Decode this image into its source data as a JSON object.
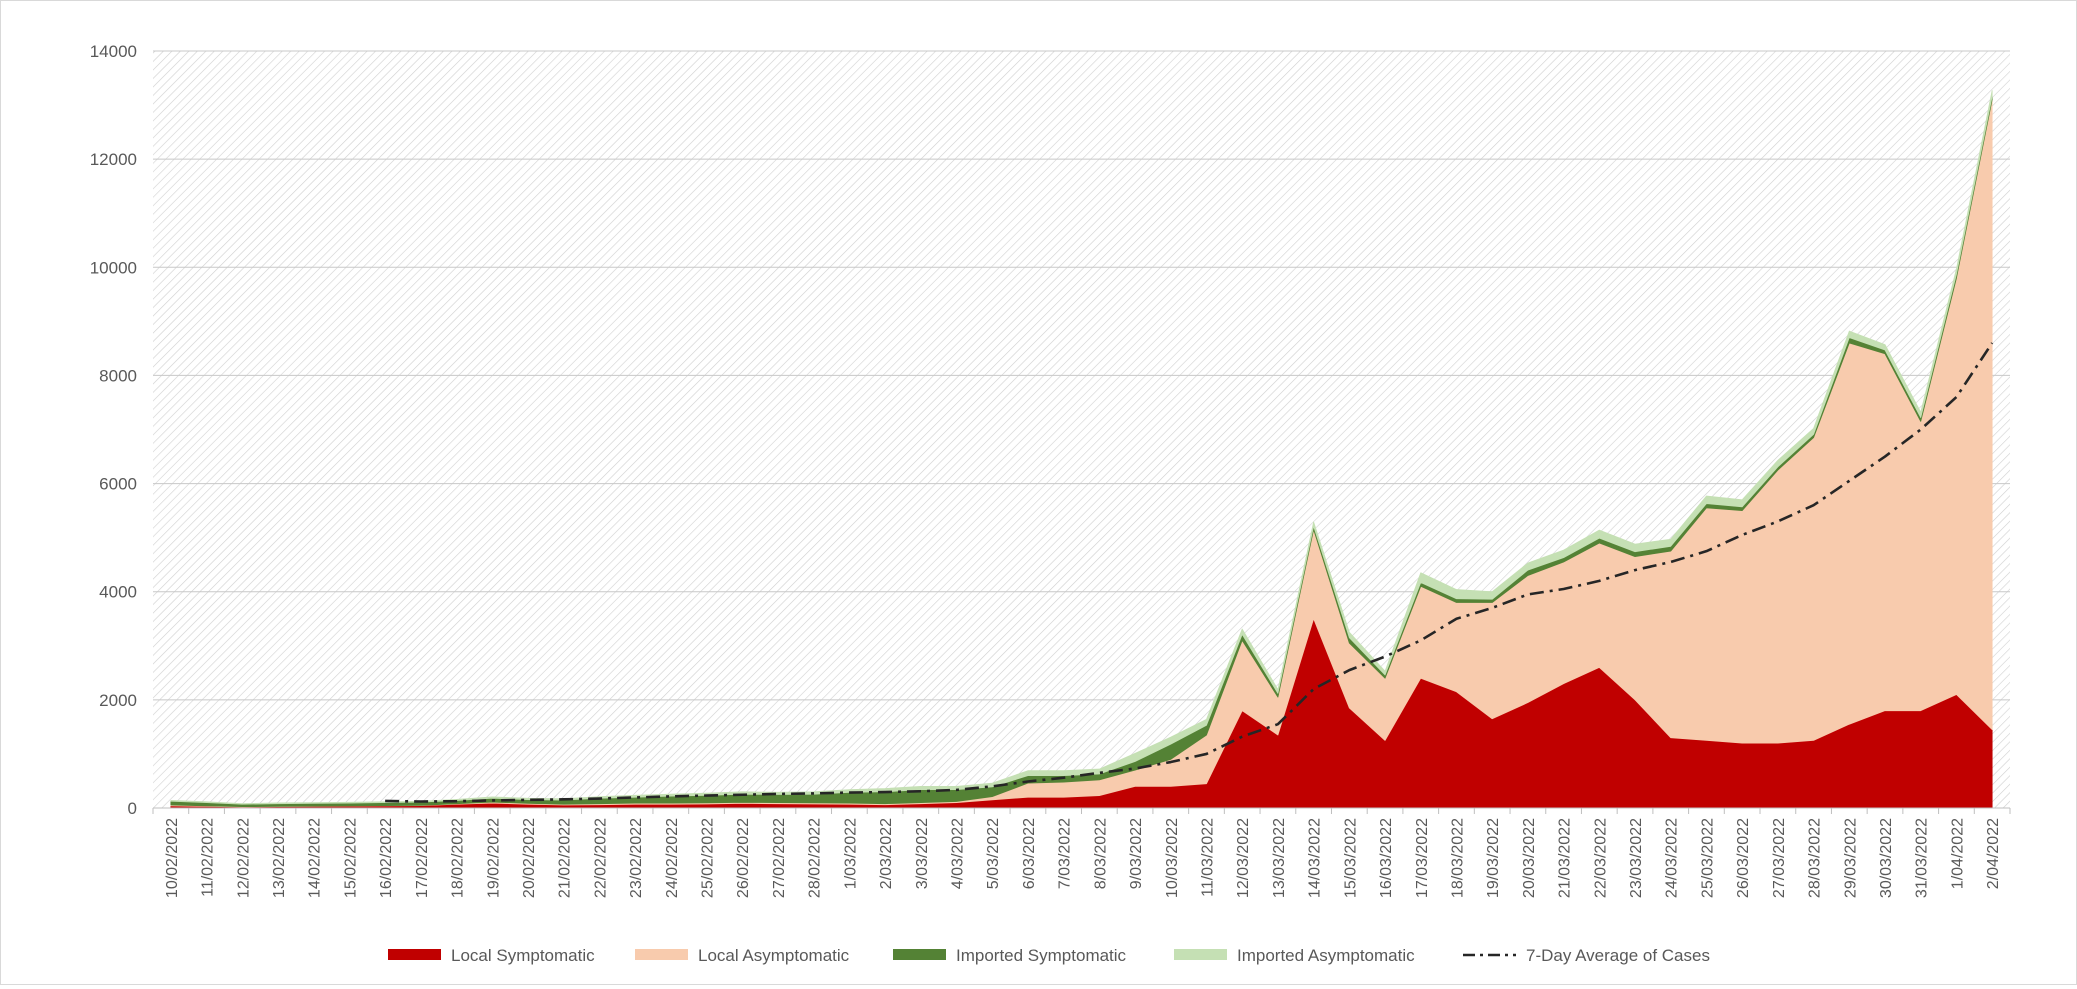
{
  "chart_data": {
    "type": "area",
    "stacked": true,
    "title": "",
    "xlabel": "",
    "ylabel": "",
    "ylim": [
      0,
      14000
    ],
    "y_ticks": [
      0,
      2000,
      4000,
      6000,
      8000,
      10000,
      12000,
      14000
    ],
    "grid": true,
    "legend_position": "bottom",
    "categories": [
      "10/02/2022",
      "11/02/2022",
      "12/02/2022",
      "13/02/2022",
      "14/02/2022",
      "15/02/2022",
      "16/02/2022",
      "17/02/2022",
      "18/02/2022",
      "19/02/2022",
      "20/02/2022",
      "21/02/2022",
      "22/02/2022",
      "23/02/2022",
      "24/02/2022",
      "25/02/2022",
      "26/02/2022",
      "27/02/2022",
      "28/02/2022",
      "1/03/2022",
      "2/03/2022",
      "3/03/2022",
      "4/03/2022",
      "5/03/2022",
      "6/03/2022",
      "7/03/2022",
      "8/03/2022",
      "9/03/2022",
      "10/03/2022",
      "11/03/2022",
      "12/03/2022",
      "13/03/2022",
      "14/03/2022",
      "15/03/2022",
      "16/03/2022",
      "17/03/2022",
      "18/03/2022",
      "19/03/2022",
      "20/03/2022",
      "21/03/2022",
      "22/03/2022",
      "23/03/2022",
      "24/03/2022",
      "25/03/2022",
      "26/03/2022",
      "27/03/2022",
      "28/03/2022",
      "29/03/2022",
      "30/03/2022",
      "31/03/2022",
      "1/04/2022",
      "2/04/2022"
    ],
    "series": [
      {
        "name": "Local Symptomatic",
        "kind": "area",
        "color": "#c00000",
        "values": [
          40,
          30,
          20,
          25,
          30,
          35,
          40,
          45,
          70,
          90,
          70,
          55,
          60,
          70,
          70,
          75,
          85,
          80,
          75,
          70,
          60,
          80,
          100,
          150,
          200,
          200,
          230,
          400,
          400,
          450,
          1800,
          1350,
          3500,
          1850,
          1250,
          2400,
          2150,
          1650,
          1950,
          2300,
          2600,
          2000,
          1300,
          1250,
          1200,
          1200,
          1250,
          1550,
          1800,
          1800,
          2100,
          1450
        ]
      },
      {
        "name": "Local Asymptomatic",
        "kind": "area",
        "color": "#f8cbad",
        "values": [
          15,
          10,
          5,
          5,
          5,
          5,
          5,
          5,
          10,
          20,
          15,
          15,
          20,
          20,
          20,
          20,
          20,
          20,
          20,
          20,
          20,
          20,
          20,
          60,
          260,
          280,
          290,
          300,
          500,
          900,
          1300,
          700,
          1650,
          1200,
          1150,
          1700,
          1650,
          2150,
          2350,
          2250,
          2300,
          2650,
          3450,
          4300,
          4300,
          5050,
          5600,
          7050,
          6600,
          5350,
          7700,
          11650
        ]
      },
      {
        "name": "Imported Symptomatic",
        "kind": "area",
        "color": "#548235",
        "values": [
          70,
          60,
          45,
          50,
          50,
          50,
          55,
          60,
          60,
          70,
          70,
          75,
          100,
          110,
          130,
          140,
          150,
          150,
          160,
          200,
          220,
          240,
          220,
          180,
          140,
          120,
          110,
          160,
          280,
          180,
          110,
          70,
          60,
          100,
          60,
          70,
          70,
          60,
          100,
          80,
          90,
          90,
          90,
          80,
          70,
          60,
          60,
          100,
          70,
          70,
          70,
          60
        ]
      },
      {
        "name": "Imported Asymptomatic",
        "kind": "area",
        "color": "#c5e0b4",
        "values": [
          15,
          15,
          10,
          15,
          15,
          15,
          15,
          15,
          20,
          25,
          25,
          25,
          30,
          35,
          35,
          40,
          45,
          40,
          45,
          50,
          60,
          60,
          60,
          70,
          90,
          90,
          90,
          150,
          130,
          110,
          100,
          70,
          80,
          100,
          70,
          180,
          170,
          140,
          130,
          140,
          150,
          140,
          130,
          140,
          130,
          120,
          110,
          120,
          100,
          100,
          100,
          110
        ]
      },
      {
        "name": "7-Day Average of Cases",
        "kind": "line",
        "color": "#262626",
        "dash": "dashdot",
        "values": [
          null,
          null,
          null,
          null,
          null,
          null,
          130,
          120,
          125,
          140,
          150,
          160,
          175,
          195,
          215,
          230,
          245,
          260,
          270,
          285,
          295,
          310,
          335,
          400,
          490,
          560,
          650,
          730,
          850,
          1000,
          1320,
          1550,
          2200,
          2550,
          2800,
          3100,
          3500,
          3700,
          3950,
          4050,
          4200,
          4400,
          4550,
          4750,
          5050,
          5300,
          5600,
          6050,
          6500,
          7000,
          7600,
          8600
        ]
      }
    ]
  }
}
